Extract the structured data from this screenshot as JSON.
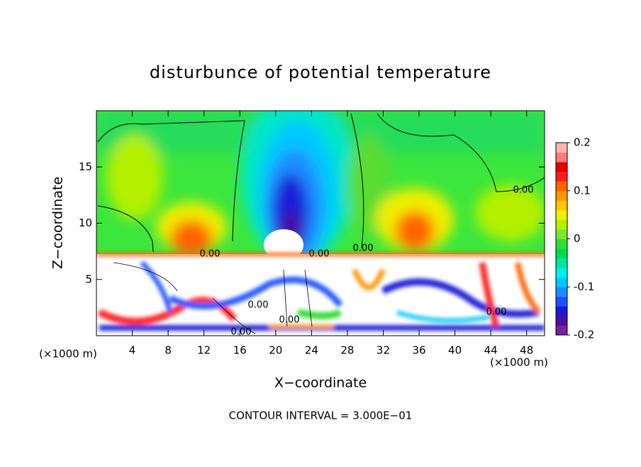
{
  "chart_data": {
    "type": "contour",
    "title": "disturbunce of potential temperature",
    "x_label": "X−coordinate",
    "y_label": "Z−coordinate",
    "x_unit": "(×1000 m)",
    "y_unit": "(×1000 m)",
    "footer": "CONTOUR INTERVAL = 3.000E−01",
    "xlim": [
      0,
      50
    ],
    "xticks": [
      4,
      8,
      12,
      16,
      20,
      24,
      28,
      32,
      36,
      40,
      44,
      48
    ],
    "ylim": [
      0,
      20
    ],
    "yticks": [
      5,
      10,
      15
    ],
    "contour_labels": [
      "0.00",
      "0.00",
      "0.00",
      "0.00",
      "0.00",
      "0.00",
      "0.00",
      "0.00"
    ],
    "colorbar": {
      "lim": [
        -0.2,
        0.2
      ],
      "ticks": [
        -0.2,
        -0.1,
        0,
        0.1,
        0.2
      ],
      "colors": [
        "#7a1f9e",
        "#4b0fa0",
        "#1a1ad6",
        "#1e50ff",
        "#1e8cff",
        "#00c8ff",
        "#00f0e6",
        "#00e6a0",
        "#00dc50",
        "#32dc32",
        "#78e632",
        "#b4f000",
        "#f0f000",
        "#ffc800",
        "#ff9600",
        "#ff6400",
        "#ff1e1e",
        "#e60000",
        "#ff7878",
        "#ffb4b4"
      ]
    }
  }
}
